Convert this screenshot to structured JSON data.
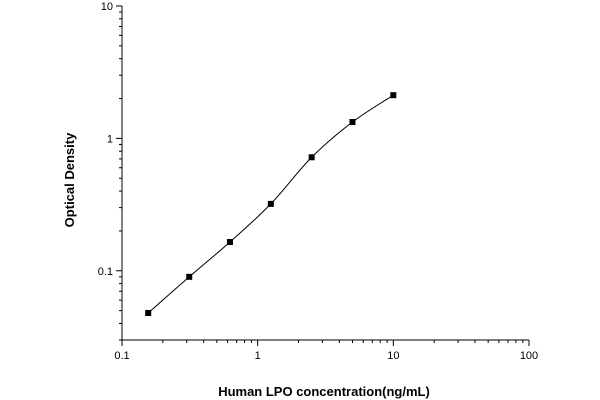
{
  "chart_data": {
    "type": "scatter",
    "title": "",
    "xlabel": "Human LPO concentration(ng/mL)",
    "ylabel": "Optical Density",
    "xscale": "log",
    "yscale": "log",
    "xlim": [
      0.1,
      100
    ],
    "ylim": [
      0.03,
      10
    ],
    "grid": false,
    "legend": "none",
    "x_ticks": [
      {
        "value": 0.1,
        "label": "0.1"
      },
      {
        "value": 1,
        "label": "1"
      },
      {
        "value": 10,
        "label": "10"
      },
      {
        "value": 100,
        "label": "100"
      }
    ],
    "y_ticks": [
      {
        "value": 0.1,
        "label": "0.1"
      },
      {
        "value": 1,
        "label": "1"
      },
      {
        "value": 10,
        "label": "10"
      }
    ],
    "series": [
      {
        "marker": "square",
        "fit_curve": true,
        "points": [
          {
            "x": 0.156,
            "y": 0.048
          },
          {
            "x": 0.313,
            "y": 0.09
          },
          {
            "x": 0.625,
            "y": 0.165
          },
          {
            "x": 1.25,
            "y": 0.32
          },
          {
            "x": 2.5,
            "y": 0.72
          },
          {
            "x": 5,
            "y": 1.33
          },
          {
            "x": 10,
            "y": 2.12
          }
        ]
      }
    ]
  }
}
